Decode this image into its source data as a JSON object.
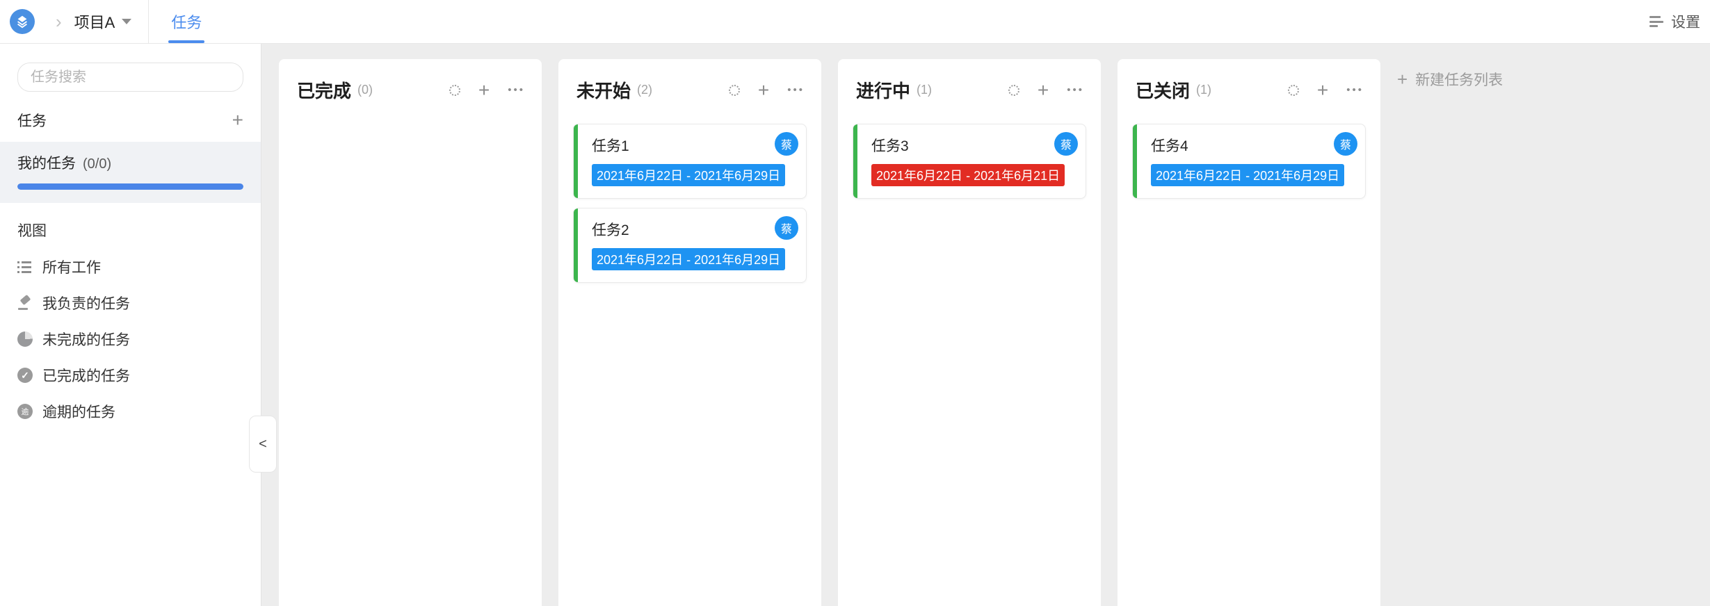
{
  "colors": {
    "accent_blue": "#4b8cee",
    "badge_blue": "#1e93f2",
    "badge_red": "#e22c23",
    "stripe_green": "#3cb54d",
    "avatar_blue": "#1e93f2",
    "progress_blue": "#4a85e8",
    "logo_blue": "#4a90e2"
  },
  "topbar": {
    "logo_icon": "layers-icon",
    "breadcrumb": {
      "chevron_glyph": "›",
      "project": "项目A"
    },
    "tab": {
      "label": "任务",
      "active": true
    },
    "settings": {
      "icon": "menu-icon",
      "label": "设置"
    }
  },
  "sidebar": {
    "search": {
      "placeholder": "任务搜索"
    },
    "tasks_section": {
      "label": "任务",
      "add_glyph": "+"
    },
    "my_tasks": {
      "label": "我的任务",
      "count": "(0/0)",
      "progress_percent": 100
    },
    "views_section": {
      "label": "视图"
    },
    "view_items": [
      {
        "label": "所有工作",
        "icon": "list-icon"
      },
      {
        "label": "我负责的任务",
        "icon": "gavel-icon"
      },
      {
        "label": "未完成的任务",
        "icon": "half-circle-icon"
      },
      {
        "label": "已完成的任务",
        "icon": "check-circle-icon"
      },
      {
        "label": "逾期的任务",
        "icon": "overdue-circle-icon"
      }
    ],
    "collapse_glyph": "<"
  },
  "board": {
    "column_icons": {
      "add_glyph": "+",
      "more_glyph": "•••"
    },
    "columns": [
      {
        "title": "已完成",
        "count": "(0)",
        "cards": []
      },
      {
        "title": "未开始",
        "count": "(2)",
        "cards": [
          {
            "title": "任务1",
            "date_range": "2021年6月22日 - 2021年6月29日",
            "date_status": "normal",
            "assignee": "蔡"
          },
          {
            "title": "任务2",
            "date_range": "2021年6月22日 - 2021年6月29日",
            "date_status": "normal",
            "assignee": "蔡"
          }
        ]
      },
      {
        "title": "进行中",
        "count": "(1)",
        "cards": [
          {
            "title": "任务3",
            "date_range": "2021年6月22日 - 2021年6月21日",
            "date_status": "overdue",
            "assignee": "蔡"
          }
        ]
      },
      {
        "title": "已关闭",
        "count": "(1)",
        "cards": [
          {
            "title": "任务4",
            "date_range": "2021年6月22日 - 2021年6月29日",
            "date_status": "normal",
            "assignee": "蔡"
          }
        ]
      }
    ],
    "new_list": {
      "plus_glyph": "+",
      "label": "新建任务列表"
    }
  }
}
